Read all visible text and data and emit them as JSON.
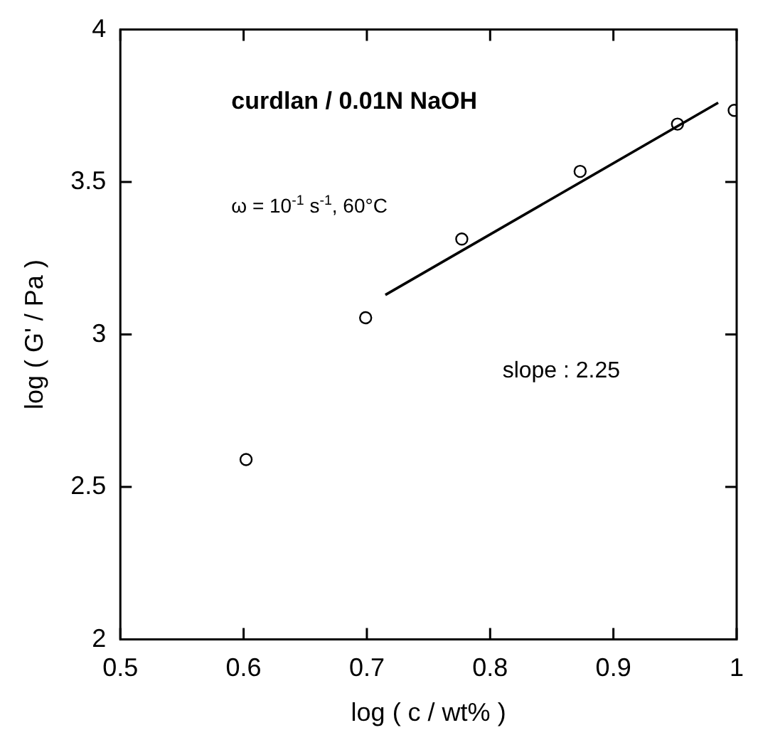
{
  "chart_data": {
    "type": "scatter",
    "title": "curdlan / 0.01N NaOH",
    "xlabel": "log ( c / wt% )",
    "ylabel": "log ( G' / Pa )",
    "annotations": [
      "ω = 10$^{-1}$ s$^{-1}$, 60°C",
      "slope : 2.25"
    ],
    "series": [
      {
        "type": "scatter",
        "color": "#000000",
        "x": [
          0.602,
          0.699,
          0.777,
          0.873,
          0.952,
          0.998
        ],
        "values": [
          2.59,
          3.055,
          3.313,
          3.535,
          3.69,
          3.735
        ]
      },
      {
        "type": "line",
        "color": "#000000",
        "marker": "none",
        "x": [
          0.715,
          0.985
        ],
        "values": [
          3.13,
          3.76
        ]
      }
    ],
    "xlim": [
      0.5,
      1
    ],
    "xticks": [
      0.5,
      0.6,
      0.7,
      0.8,
      0.9,
      1
    ],
    "ylim": [
      2,
      4
    ],
    "yticks": [
      2,
      2.5,
      3,
      3.5,
      4
    ],
    "grid": false,
    "legend": false,
    "marker": "circle",
    "line_style": "solid"
  }
}
